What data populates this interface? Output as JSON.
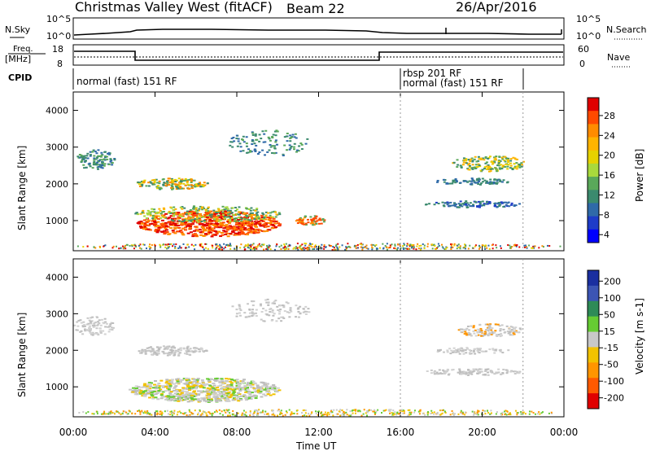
{
  "header": {
    "station": "Christmas Valley West (fitACF)",
    "beam": "Beam 22",
    "date": "26/Apr/2016"
  },
  "top_panels": {
    "nsky_label": "N.Sky",
    "nsearch_label": "N.Search",
    "nsky_ticks": [
      "10^5",
      "10^0"
    ],
    "nsearch_ticks": [
      "10^5",
      "10^0"
    ],
    "freq_label_1": "Freq.",
    "freq_label_2": "[MHz]",
    "freq_ticks": [
      "18",
      "8"
    ],
    "nave_label": "Nave",
    "nave_ticks": [
      "60",
      "0"
    ],
    "cpid_label": "CPID",
    "cpid_segments": [
      {
        "label": "normal (fast) 151 RF",
        "start_h": 0,
        "end_h": 16
      },
      {
        "label": "rbsp 201 RF",
        "start_h": 16,
        "end_h": 22
      },
      {
        "label": "normal (fast) 151 RF",
        "start_h": 16,
        "end_h": 22
      }
    ]
  },
  "chart_data": [
    {
      "type": "heatmap",
      "name": "power",
      "ylabel": "Slant Range [km]",
      "yticks": [
        "4000",
        "3000",
        "2000",
        "1000"
      ],
      "ytick_values": [
        4000,
        3000,
        2000,
        1000
      ],
      "ylim": [
        180,
        4500
      ],
      "xlim_hours": [
        0,
        24
      ],
      "colorbar_label": "Power [dB]",
      "colorbar_ticks": [
        "28",
        "24",
        "20",
        "16",
        "12",
        "8",
        "4"
      ],
      "colorbar_colors": [
        "#e00000",
        "#ff4a00",
        "#ff8c00",
        "#ffb400",
        "#e6d200",
        "#a9d93c",
        "#5aa85a",
        "#3b8a6e",
        "#2f6aa8",
        "#1e3cc8",
        "#0000ff"
      ]
    },
    {
      "type": "heatmap",
      "name": "velocity",
      "ylabel": "Slant Range [km]",
      "yticks": [
        "4000",
        "3000",
        "2000",
        "1000"
      ],
      "ytick_values": [
        4000,
        3000,
        2000,
        1000
      ],
      "ylim": [
        180,
        4500
      ],
      "xlim_hours": [
        0,
        24
      ],
      "colorbar_label": "Velocity [m s-1]",
      "colorbar_ticks": [
        "200",
        "100",
        "50",
        "15",
        "-15",
        "-50",
        "-100",
        "-200"
      ],
      "colorbar_colors": [
        "#1a2fa0",
        "#3c55b4",
        "#2e8b57",
        "#66cc33",
        "#c8c8c8",
        "#f2c200",
        "#ff9500",
        "#ff5a00",
        "#e00000"
      ]
    }
  ],
  "xaxis": {
    "label": "Time UT",
    "ticks": [
      "00:00",
      "04:00",
      "08:00",
      "12:00",
      "16:00",
      "20:00",
      "00:00"
    ],
    "tick_hours": [
      0,
      4,
      8,
      12,
      16,
      20,
      24
    ],
    "dashed_lines_hours": [
      16,
      22
    ]
  }
}
